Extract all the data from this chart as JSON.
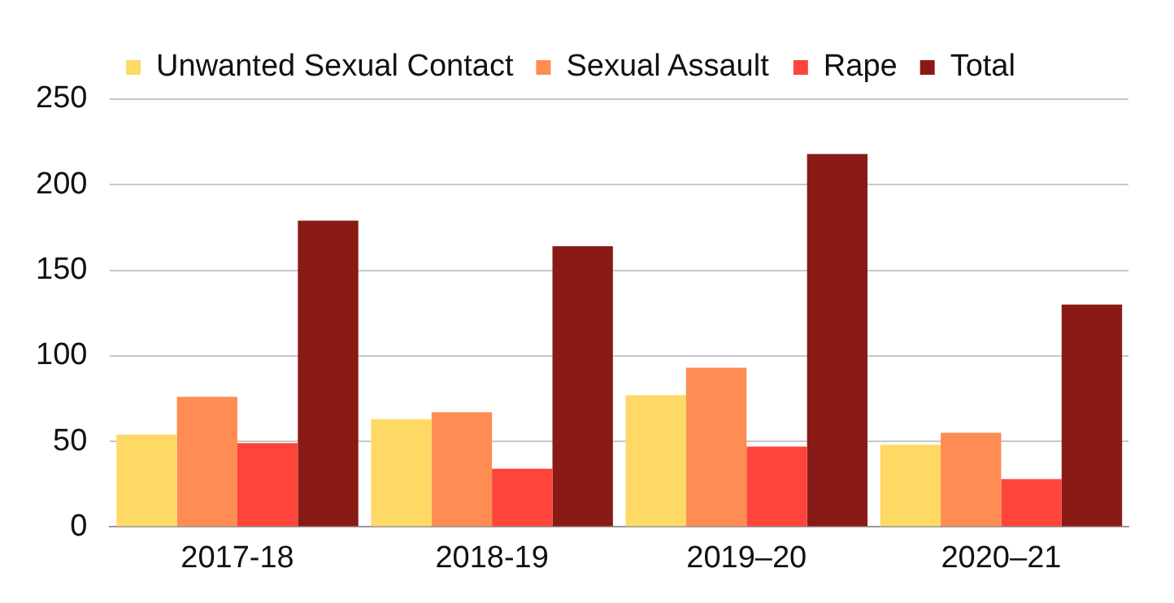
{
  "chart_data": {
    "type": "bar",
    "categories": [
      "2017-18",
      "2018-19",
      "2019–20",
      "2020–21"
    ],
    "series": [
      {
        "name": "Unwanted Sexual Contact",
        "color": "#fed966",
        "values": [
          54,
          63,
          77,
          48
        ]
      },
      {
        "name": "Sexual Assault",
        "color": "#fe8c53",
        "values": [
          76,
          67,
          93,
          55
        ]
      },
      {
        "name": "Rape",
        "color": "#fe443b",
        "values": [
          49,
          34,
          47,
          28
        ]
      },
      {
        "name": "Total",
        "color": "#8a1a16",
        "values": [
          179,
          164,
          218,
          130
        ]
      }
    ],
    "ylim": [
      0,
      250
    ],
    "yticks": [
      0,
      50,
      100,
      150,
      200,
      250
    ],
    "grid": "y",
    "legend": "top"
  }
}
